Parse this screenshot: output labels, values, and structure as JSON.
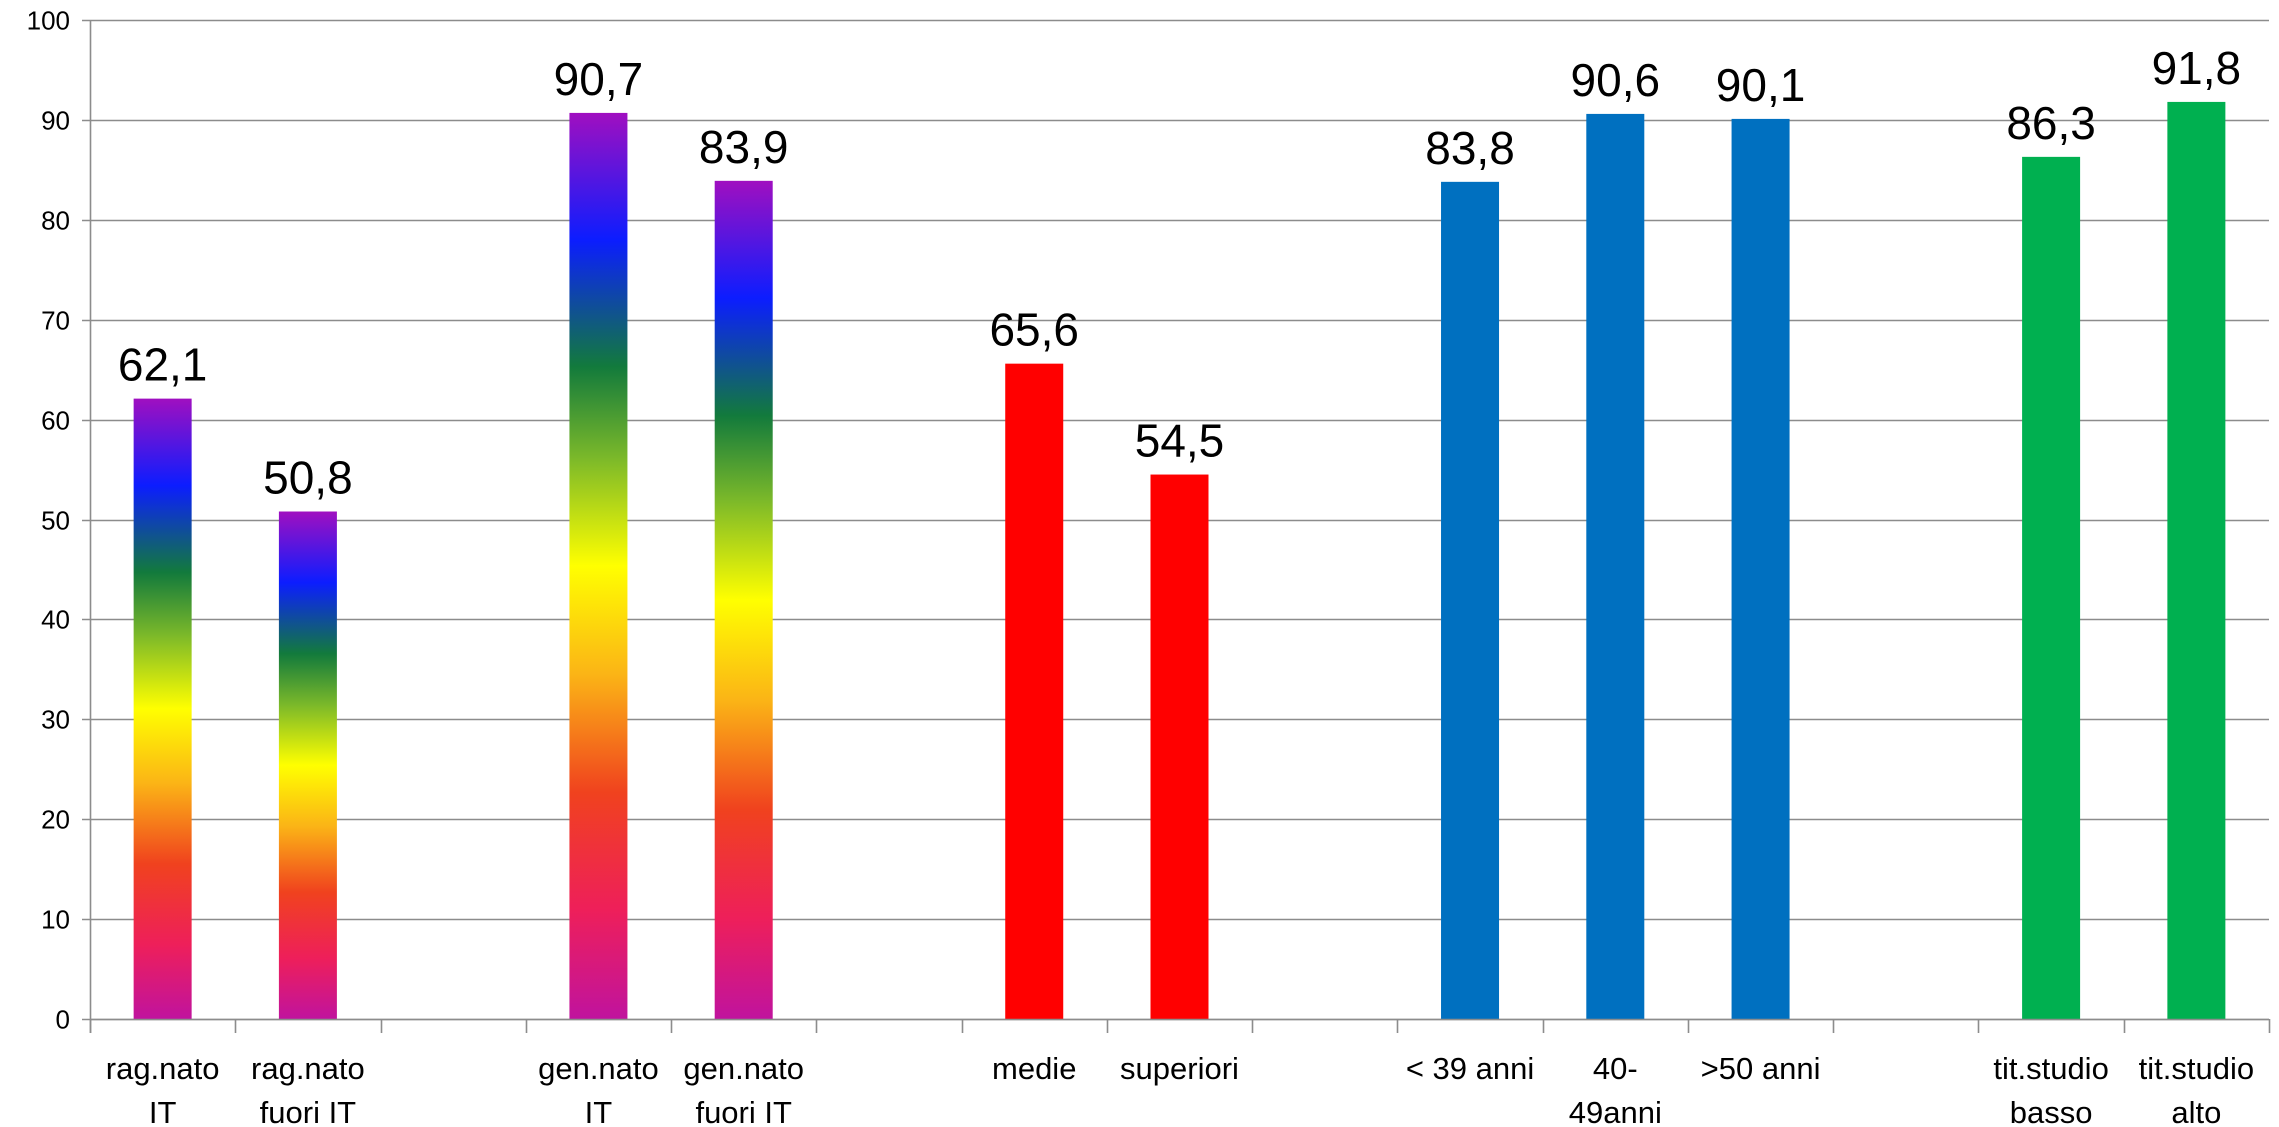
{
  "chart_data": {
    "type": "bar",
    "title": "",
    "xlabel": "",
    "ylabel": "",
    "ylim": [
      0,
      100
    ],
    "yticks": [
      0,
      10,
      20,
      30,
      40,
      50,
      60,
      70,
      80,
      90,
      100
    ],
    "grid": true,
    "legend": "none",
    "categories": [
      [
        "rag.nato",
        "IT"
      ],
      [
        "rag.nato",
        "fuori IT"
      ],
      [
        "",
        ""
      ],
      [
        "gen.nato",
        "IT"
      ],
      [
        "gen.nato",
        "fuori IT"
      ],
      [
        "",
        ""
      ],
      [
        "medie",
        ""
      ],
      [
        "superiori",
        ""
      ],
      [
        "",
        ""
      ],
      [
        "< 39 anni",
        ""
      ],
      [
        "40-",
        "49anni"
      ],
      [
        ">50 anni",
        ""
      ],
      [
        "",
        ""
      ],
      [
        "tit.studio",
        "basso"
      ],
      [
        "tit.studio",
        "alto"
      ]
    ],
    "values": [
      62.1,
      50.8,
      null,
      90.7,
      83.9,
      null,
      65.6,
      54.5,
      null,
      83.8,
      90.6,
      90.1,
      null,
      86.3,
      91.8
    ],
    "labels": [
      "62,1",
      "50,8",
      "",
      "90,7",
      "83,9",
      "",
      "65,6",
      "54,5",
      "",
      "83,8",
      "90,6",
      "90,1",
      "",
      "86,3",
      "91,8"
    ],
    "fills": [
      "rainbow",
      "rainbow",
      "",
      "rainbow",
      "rainbow",
      "",
      "#ff0000",
      "#ff0000",
      "",
      "#0070c0",
      "#0070c0",
      "#0070c0",
      "",
      "#00b050",
      "#00b050"
    ]
  }
}
